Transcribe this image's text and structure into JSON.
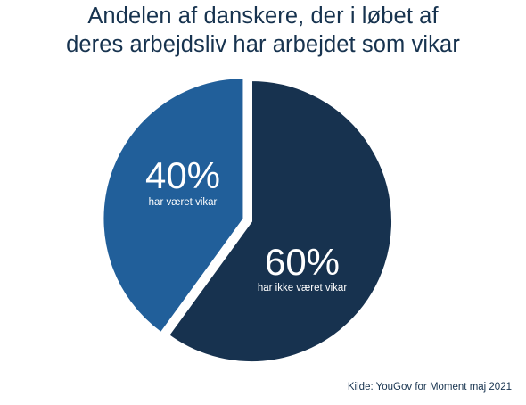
{
  "chart_data": {
    "type": "pie",
    "title_lines": [
      "Andelen af danskere, der i løbet af",
      "deres arbejdsliv har arbejdet som vikar"
    ],
    "slices": [
      {
        "value": 60,
        "value_label": "60%",
        "label": "har ikke været vikar",
        "color": "#17324f"
      },
      {
        "value": 40,
        "value_label": "40%",
        "label": "har været vikar",
        "color": "#215f9a"
      }
    ],
    "legend": "none",
    "source": "Kilde: YouGov for Moment maj 2021"
  }
}
